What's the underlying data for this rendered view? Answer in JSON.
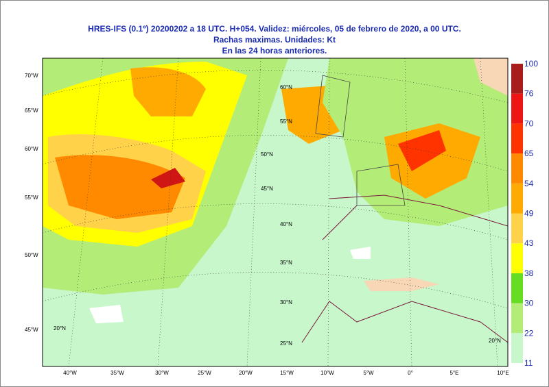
{
  "header": {
    "lines": [
      "HRES-IFS (0.1º) 20200202 a 18 UTC.  H+054. Validez: miércoles, 05 de febrero de 2020,  a  00 UTC.",
      "Rachas maximas. Unidades: Kt",
      "En las 24 horas anteriores."
    ]
  },
  "colorbar": {
    "levels": [
      11,
      22,
      30,
      38,
      43,
      49,
      54,
      65,
      70,
      76,
      100
    ],
    "colors": [
      "#c8f7cc",
      "#b4ec78",
      "#66dd22",
      "#ffff00",
      "#ffd24a",
      "#ffaa00",
      "#ff8a00",
      "#ff3300",
      "#ee1515",
      "#a81c1c"
    ]
  },
  "map": {
    "left_labels": [
      "70°W",
      "65°W",
      "60°W",
      "55°W",
      "50°W",
      "45°W"
    ],
    "bottom_labels": [
      "40°W",
      "35°W",
      "30°W",
      "25°W",
      "20°W",
      "15°W",
      "10°W",
      "5°W",
      "0°",
      "5°E",
      "10°E"
    ],
    "grid_labels": [
      "60°N",
      "55°N",
      "50°N",
      "45°N",
      "40°N",
      "35°N",
      "30°N",
      "25°N",
      "20°N",
      "20°N"
    ]
  }
}
